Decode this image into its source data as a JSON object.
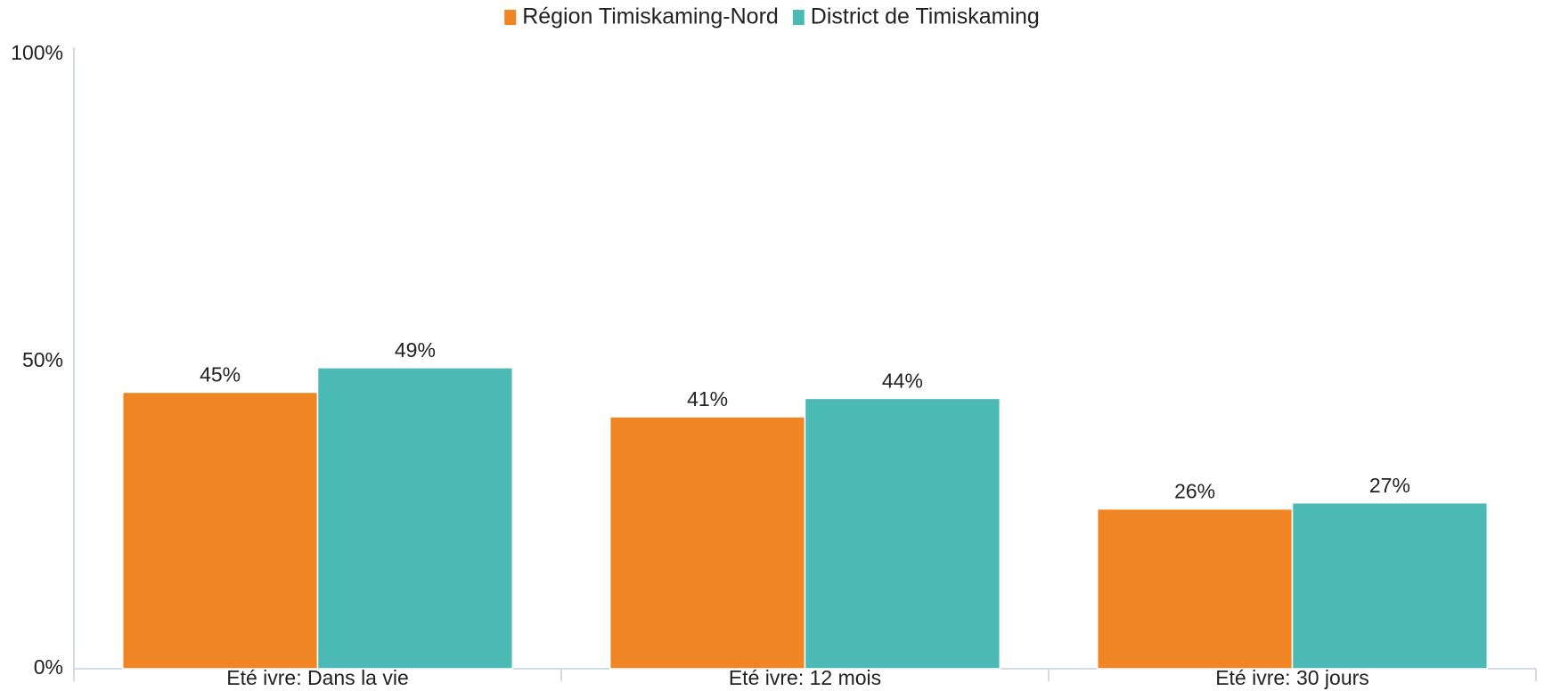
{
  "chart_data": {
    "type": "bar",
    "categories": [
      "Été ivre: Dans la vie",
      "Été ivre: 12 mois",
      "Été ivre: 30 jours"
    ],
    "series": [
      {
        "name": "Région Timiskaming-Nord",
        "color": "#f08523",
        "values": [
          45,
          41,
          26
        ],
        "value_labels": [
          "45%",
          "41%",
          "26%"
        ]
      },
      {
        "name": "District de Timiskaming",
        "color": "#4bbab5",
        "values": [
          49,
          44,
          27
        ],
        "value_labels": [
          "49%",
          "44%",
          "27%"
        ]
      }
    ],
    "ylim": [
      0,
      100
    ],
    "yticks": [
      {
        "value": 0,
        "label": "0%"
      },
      {
        "value": 50,
        "label": "50%"
      },
      {
        "value": 100,
        "label": "100%"
      }
    ],
    "grid": false,
    "legend": "top"
  }
}
